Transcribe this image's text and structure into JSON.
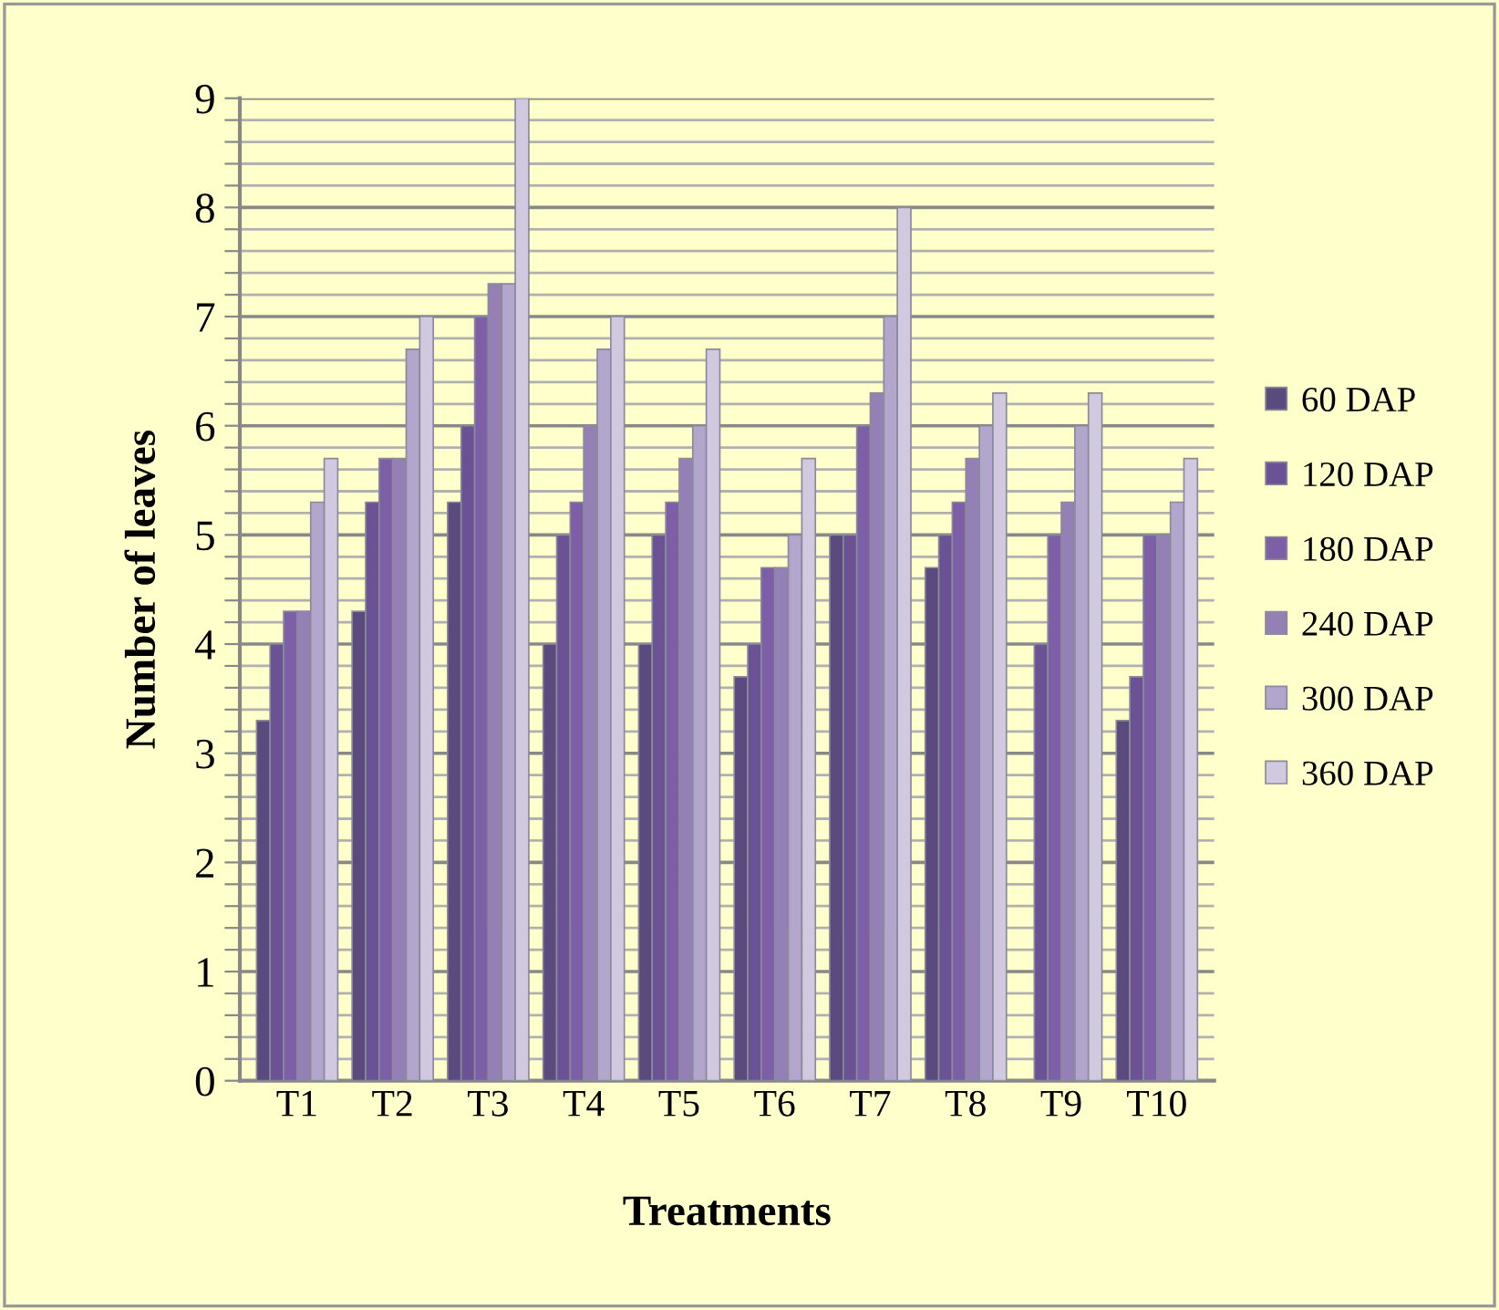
{
  "chart_data": {
    "type": "bar",
    "xlabel": "Treatments",
    "ylabel": "Number of leaves",
    "categories": [
      "T1",
      "T2",
      "T3",
      "T4",
      "T5",
      "T6",
      "T7",
      "T8",
      "T9",
      "T10"
    ],
    "series": [
      {
        "name": "60 DAP",
        "color": "#5b4a7e",
        "values": [
          3.3,
          4.3,
          5.3,
          4.0,
          4.0,
          3.7,
          5.0,
          4.7,
          null,
          3.3
        ]
      },
      {
        "name": "120 DAP",
        "color": "#6a5294",
        "values": [
          4.0,
          5.3,
          6.0,
          5.0,
          5.0,
          4.0,
          5.0,
          5.0,
          4.0,
          3.7
        ]
      },
      {
        "name": "180 DAP",
        "color": "#7d5fa8",
        "values": [
          4.3,
          5.7,
          7.0,
          5.3,
          5.3,
          4.7,
          6.0,
          5.3,
          5.0,
          5.0
        ]
      },
      {
        "name": "240 DAP",
        "color": "#9580b5",
        "values": [
          4.3,
          5.7,
          7.3,
          6.0,
          5.7,
          4.7,
          6.3,
          5.7,
          5.3,
          5.0
        ]
      },
      {
        "name": "300 DAP",
        "color": "#b3a6cc",
        "values": [
          5.3,
          6.7,
          7.3,
          6.7,
          6.0,
          5.0,
          7.0,
          6.0,
          6.0,
          5.3
        ]
      },
      {
        "name": "360 DAP",
        "color": "#d0c9e0",
        "values": [
          5.7,
          7.0,
          9.0,
          7.0,
          6.7,
          5.7,
          8.0,
          6.3,
          6.3,
          5.7
        ]
      }
    ],
    "ylim": [
      0,
      9
    ],
    "yticks": [
      0,
      {
        "value": 0.2,
        "label": null
      },
      {
        "value": 0.4,
        "label": null
      },
      {
        "value": 0.6,
        "label": null
      },
      {
        "value": 0.8,
        "label": null
      },
      1,
      {
        "value": 1.2,
        "label": null
      },
      {
        "value": 1.4,
        "label": null
      },
      {
        "value": 1.6,
        "label": null
      },
      {
        "value": 1.8,
        "label": null
      },
      2,
      {
        "value": 2.2,
        "label": null
      },
      {
        "value": 2.4,
        "label": null
      },
      {
        "value": 2.6,
        "label": null
      },
      {
        "value": 2.8,
        "label": null
      },
      3,
      {
        "value": 3.2,
        "label": null
      },
      {
        "value": 3.4,
        "label": null
      },
      {
        "value": 3.6,
        "label": null
      },
      {
        "value": 3.8,
        "label": null
      },
      4,
      {
        "value": 4.2,
        "label": null
      },
      {
        "value": 4.4,
        "label": null
      },
      {
        "value": 4.6,
        "label": null
      },
      {
        "value": 4.8,
        "label": null
      },
      5,
      {
        "value": 5.2,
        "label": null
      },
      {
        "value": 5.4,
        "label": null
      },
      {
        "value": 5.6,
        "label": null
      },
      {
        "value": 5.8,
        "label": null
      },
      6,
      {
        "value": 6.2,
        "label": null
      },
      {
        "value": 6.4,
        "label": null
      },
      {
        "value": 6.6,
        "label": null
      },
      {
        "value": 6.8,
        "label": null
      },
      7,
      {
        "value": 7.2,
        "label": null
      },
      {
        "value": 7.4,
        "label": null
      },
      {
        "value": 7.6,
        "label": null
      },
      {
        "value": 7.8,
        "label": null
      },
      8,
      {
        "value": 8.2,
        "label": null
      },
      {
        "value": 8.4,
        "label": null
      },
      {
        "value": 8.6,
        "label": null
      },
      {
        "value": 8.8,
        "label": null
      },
      9
    ],
    "grid": "y",
    "legend": "right"
  }
}
